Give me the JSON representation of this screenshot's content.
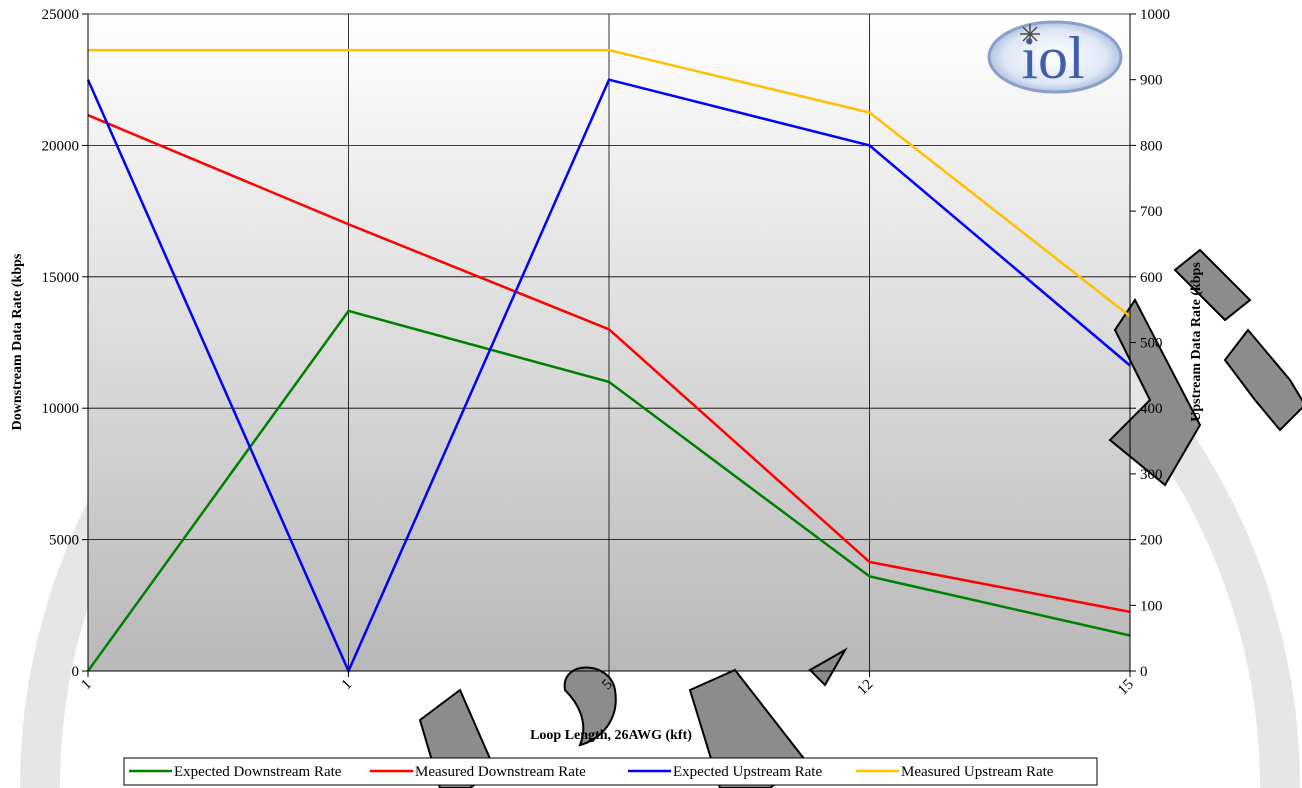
{
  "chart_data": {
    "type": "line",
    "title": "",
    "xlabel": "Loop Length, 26AWG (kft)",
    "ylabel": "Downstream Data Rate (kbps",
    "y2label": "Upstream Data Rate (kbps",
    "categories": [
      "1",
      "1",
      "5",
      "12",
      "15"
    ],
    "ylim": [
      0,
      25000
    ],
    "y2lim": [
      0,
      1000
    ],
    "yticks": [
      0,
      5000,
      10000,
      15000,
      20000,
      25000
    ],
    "y2ticks": [
      0,
      100,
      200,
      300,
      400,
      500,
      600,
      700,
      800,
      900,
      1000
    ],
    "grid": true,
    "legend": "bottom",
    "series": [
      {
        "name": "Expected Downstream Rate",
        "axis": "left",
        "color": "#008000",
        "values": [
          0,
          13700,
          11000,
          3600,
          1350
        ]
      },
      {
        "name": "Measured Downstream Rate",
        "axis": "left",
        "color": "#ff0000",
        "values": [
          21150,
          17000,
          13000,
          4150,
          2250
        ]
      },
      {
        "name": "Expected Upstream Rate",
        "axis": "right",
        "color": "#0000ff",
        "values": [
          900,
          0,
          900,
          800,
          465
        ]
      },
      {
        "name": "Measured Upstream Rate",
        "axis": "right",
        "color": "#ffc000",
        "values": [
          945,
          945,
          945,
          850,
          540
        ]
      }
    ]
  },
  "logo": {
    "text": "iol"
  }
}
